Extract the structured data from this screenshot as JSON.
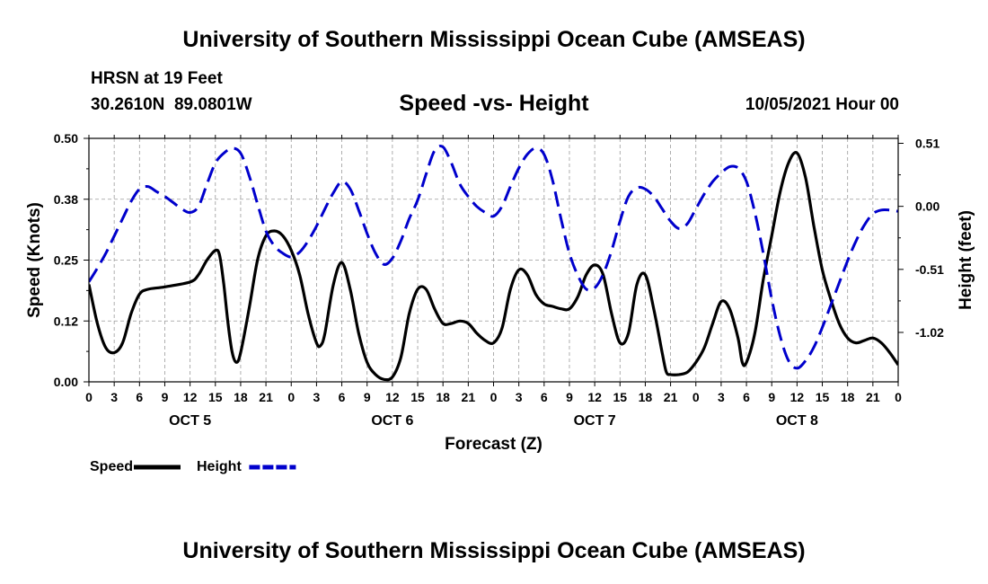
{
  "header": {
    "top_title": "University of Southern Mississippi Ocean Cube (AMSEAS)",
    "bottom_title": "University of Southern Mississippi Ocean Cube (AMSEAS)",
    "station": "HRSN at 19 Feet",
    "coords": "30.2610N  89.0801W",
    "chart_title": "Speed -vs- Height",
    "datestamp": "10/05/2021 Hour 00"
  },
  "chart_data": {
    "type": "line",
    "title": "Speed -vs- Height",
    "xlabel": "Forecast (Z)",
    "ylabel": "Speed (Knots)",
    "y2label": "Height (feet)",
    "x_hours_range": [
      0,
      96
    ],
    "ylim": [
      0,
      0.5
    ],
    "y2lim": [
      -1.42,
      0.55
    ],
    "y_ticks": [
      "0.00",
      "0.12",
      "0.25",
      "0.38",
      "0.50"
    ],
    "y_tick_values": [
      0,
      0.125,
      0.25,
      0.375,
      0.5
    ],
    "y2_ticks": [
      "0.51",
      "0.00",
      "-0.51",
      "-1.02"
    ],
    "y2_tick_values": [
      0.51,
      0,
      -0.51,
      -1.02
    ],
    "x_tick_labels": [
      "0",
      "3",
      "6",
      "9",
      "12",
      "15",
      "18",
      "21",
      "0",
      "3",
      "6",
      "9",
      "12",
      "15",
      "18",
      "21",
      "0",
      "3",
      "6",
      "9",
      "12",
      "15",
      "18",
      "21",
      "0",
      "3",
      "6",
      "9",
      "12",
      "15",
      "18",
      "21",
      "0"
    ],
    "day_labels": [
      {
        "label": "OCT 5",
        "hour": 12
      },
      {
        "label": "OCT 6",
        "hour": 36
      },
      {
        "label": "OCT 7",
        "hour": 60
      },
      {
        "label": "OCT 8",
        "hour": 84
      }
    ],
    "series": [
      {
        "name": "Speed",
        "axis": "left",
        "color": "#000000",
        "dash": "solid",
        "points": [
          [
            0,
            0.2
          ],
          [
            1,
            0.12
          ],
          [
            2,
            0.07
          ],
          [
            3,
            0.06
          ],
          [
            4,
            0.08
          ],
          [
            5,
            0.14
          ],
          [
            6,
            0.18
          ],
          [
            7,
            0.19
          ],
          [
            9,
            0.195
          ],
          [
            12,
            0.205
          ],
          [
            13,
            0.22
          ],
          [
            14,
            0.25
          ],
          [
            15,
            0.27
          ],
          [
            15.5,
            0.26
          ],
          [
            16,
            0.2
          ],
          [
            16.5,
            0.12
          ],
          [
            17,
            0.06
          ],
          [
            17.5,
            0.04
          ],
          [
            18,
            0.06
          ],
          [
            19,
            0.15
          ],
          [
            20,
            0.25
          ],
          [
            21,
            0.3
          ],
          [
            22,
            0.31
          ],
          [
            23,
            0.3
          ],
          [
            24,
            0.27
          ],
          [
            25,
            0.22
          ],
          [
            26,
            0.14
          ],
          [
            27,
            0.08
          ],
          [
            27.5,
            0.075
          ],
          [
            28,
            0.1
          ],
          [
            29,
            0.2
          ],
          [
            30,
            0.245
          ],
          [
            31,
            0.19
          ],
          [
            32,
            0.1
          ],
          [
            33,
            0.04
          ],
          [
            34,
            0.015
          ],
          [
            35,
            0.005
          ],
          [
            36,
            0.01
          ],
          [
            37,
            0.05
          ],
          [
            38,
            0.14
          ],
          [
            39,
            0.19
          ],
          [
            40,
            0.19
          ],
          [
            41,
            0.15
          ],
          [
            42,
            0.12
          ],
          [
            43,
            0.12
          ],
          [
            44,
            0.125
          ],
          [
            45,
            0.12
          ],
          [
            46,
            0.1
          ],
          [
            47,
            0.085
          ],
          [
            48,
            0.08
          ],
          [
            49,
            0.11
          ],
          [
            50,
            0.19
          ],
          [
            51,
            0.23
          ],
          [
            52,
            0.22
          ],
          [
            53,
            0.18
          ],
          [
            54,
            0.16
          ],
          [
            55,
            0.155
          ],
          [
            56,
            0.15
          ],
          [
            57,
            0.15
          ],
          [
            58,
            0.175
          ],
          [
            59,
            0.22
          ],
          [
            60,
            0.24
          ],
          [
            61,
            0.22
          ],
          [
            62,
            0.14
          ],
          [
            63,
            0.08
          ],
          [
            64,
            0.1
          ],
          [
            65,
            0.2
          ],
          [
            66,
            0.22
          ],
          [
            67,
            0.15
          ],
          [
            68,
            0.06
          ],
          [
            68.5,
            0.02
          ],
          [
            69,
            0.015
          ],
          [
            70,
            0.015
          ],
          [
            71,
            0.02
          ],
          [
            72,
            0.04
          ],
          [
            73,
            0.07
          ],
          [
            74,
            0.12
          ],
          [
            75,
            0.165
          ],
          [
            76,
            0.15
          ],
          [
            77,
            0.09
          ],
          [
            77.5,
            0.04
          ],
          [
            78,
            0.04
          ],
          [
            79,
            0.1
          ],
          [
            80,
            0.21
          ],
          [
            81,
            0.3
          ],
          [
            82,
            0.39
          ],
          [
            83,
            0.45
          ],
          [
            84,
            0.47
          ],
          [
            85,
            0.42
          ],
          [
            86,
            0.32
          ],
          [
            87,
            0.23
          ],
          [
            88,
            0.17
          ],
          [
            89,
            0.12
          ],
          [
            90,
            0.09
          ],
          [
            91,
            0.08
          ],
          [
            92,
            0.085
          ],
          [
            93,
            0.09
          ],
          [
            94,
            0.08
          ],
          [
            95,
            0.06
          ],
          [
            96,
            0.035
          ]
        ]
      },
      {
        "name": "Height",
        "axis": "right",
        "color": "#0000cc",
        "dash": "dashed",
        "points": [
          [
            0,
            -0.61
          ],
          [
            1,
            -0.5
          ],
          [
            2,
            -0.38
          ],
          [
            3,
            -0.24
          ],
          [
            4,
            -0.1
          ],
          [
            5,
            0.04
          ],
          [
            6,
            0.14
          ],
          [
            7,
            0.16
          ],
          [
            8,
            0.12
          ],
          [
            9,
            0.08
          ],
          [
            10,
            0.03
          ],
          [
            11,
            -0.02
          ],
          [
            12,
            -0.05
          ],
          [
            13,
            0.0
          ],
          [
            14,
            0.18
          ],
          [
            15,
            0.35
          ],
          [
            16,
            0.43
          ],
          [
            17,
            0.47
          ],
          [
            18,
            0.43
          ],
          [
            19,
            0.25
          ],
          [
            20,
            0.02
          ],
          [
            21,
            -0.2
          ],
          [
            22,
            -0.32
          ],
          [
            23,
            -0.38
          ],
          [
            24,
            -0.41
          ],
          [
            25,
            -0.37
          ],
          [
            26,
            -0.28
          ],
          [
            27,
            -0.16
          ],
          [
            28,
            -0.02
          ],
          [
            29,
            0.11
          ],
          [
            30,
            0.2
          ],
          [
            31,
            0.14
          ],
          [
            32,
            -0.03
          ],
          [
            33,
            -0.22
          ],
          [
            34,
            -0.38
          ],
          [
            35,
            -0.47
          ],
          [
            36,
            -0.42
          ],
          [
            37,
            -0.28
          ],
          [
            38,
            -0.1
          ],
          [
            39,
            0.05
          ],
          [
            40,
            0.26
          ],
          [
            41,
            0.45
          ],
          [
            42,
            0.48
          ],
          [
            43,
            0.35
          ],
          [
            44,
            0.18
          ],
          [
            45,
            0.08
          ],
          [
            46,
            0.0
          ],
          [
            47,
            -0.05
          ],
          [
            48,
            -0.08
          ],
          [
            49,
            0.0
          ],
          [
            50,
            0.16
          ],
          [
            51,
            0.31
          ],
          [
            52,
            0.42
          ],
          [
            53,
            0.47
          ],
          [
            54,
            0.42
          ],
          [
            55,
            0.21
          ],
          [
            56,
            -0.1
          ],
          [
            57,
            -0.38
          ],
          [
            58,
            -0.56
          ],
          [
            59,
            -0.67
          ],
          [
            60,
            -0.66
          ],
          [
            61,
            -0.55
          ],
          [
            62,
            -0.36
          ],
          [
            63,
            -0.12
          ],
          [
            64,
            0.08
          ],
          [
            65,
            0.15
          ],
          [
            66,
            0.14
          ],
          [
            67,
            0.08
          ],
          [
            68,
            -0.02
          ],
          [
            69,
            -0.12
          ],
          [
            70,
            -0.18
          ],
          [
            71,
            -0.14
          ],
          [
            72,
            -0.02
          ],
          [
            73,
            0.1
          ],
          [
            74,
            0.2
          ],
          [
            75,
            0.27
          ],
          [
            76,
            0.32
          ],
          [
            77,
            0.31
          ],
          [
            78,
            0.2
          ],
          [
            79,
            -0.05
          ],
          [
            80,
            -0.38
          ],
          [
            81,
            -0.75
          ],
          [
            82,
            -1.05
          ],
          [
            83,
            -1.25
          ],
          [
            84,
            -1.31
          ],
          [
            85,
            -1.25
          ],
          [
            86,
            -1.14
          ],
          [
            87,
            -0.98
          ],
          [
            88,
            -0.8
          ],
          [
            89,
            -0.62
          ],
          [
            90,
            -0.44
          ],
          [
            91,
            -0.28
          ],
          [
            92,
            -0.15
          ],
          [
            93,
            -0.06
          ],
          [
            94,
            -0.03
          ],
          [
            95,
            -0.03
          ],
          [
            96,
            -0.04
          ]
        ]
      }
    ],
    "legend": [
      {
        "label": "Speed",
        "color": "#000000",
        "dash": "solid"
      },
      {
        "label": "Height",
        "color": "#0000cc",
        "dash": "dashed"
      }
    ]
  }
}
